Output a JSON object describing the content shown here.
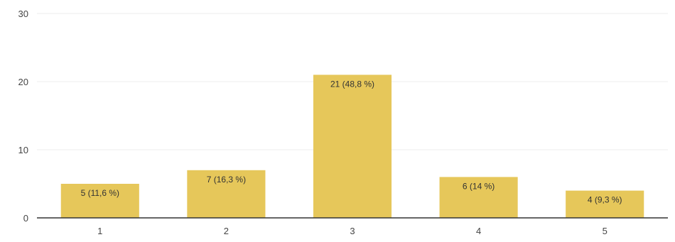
{
  "chart_data": {
    "type": "bar",
    "categories": [
      "1",
      "2",
      "3",
      "4",
      "5"
    ],
    "values": [
      5,
      7,
      21,
      6,
      4
    ],
    "data_labels": [
      "5 (11,6 %)",
      "7 (16,3 %)",
      "21 (48,8 %)",
      "6 (14 %)",
      "4 (9,3 %)"
    ],
    "y_ticks": [
      "0",
      "10",
      "20",
      "30"
    ],
    "ylim": [
      0,
      30
    ],
    "grid": true,
    "legend": "none",
    "colors": {
      "bar": "#E6C75A",
      "grid": "#EEEEEE",
      "axis": "#333333"
    }
  }
}
